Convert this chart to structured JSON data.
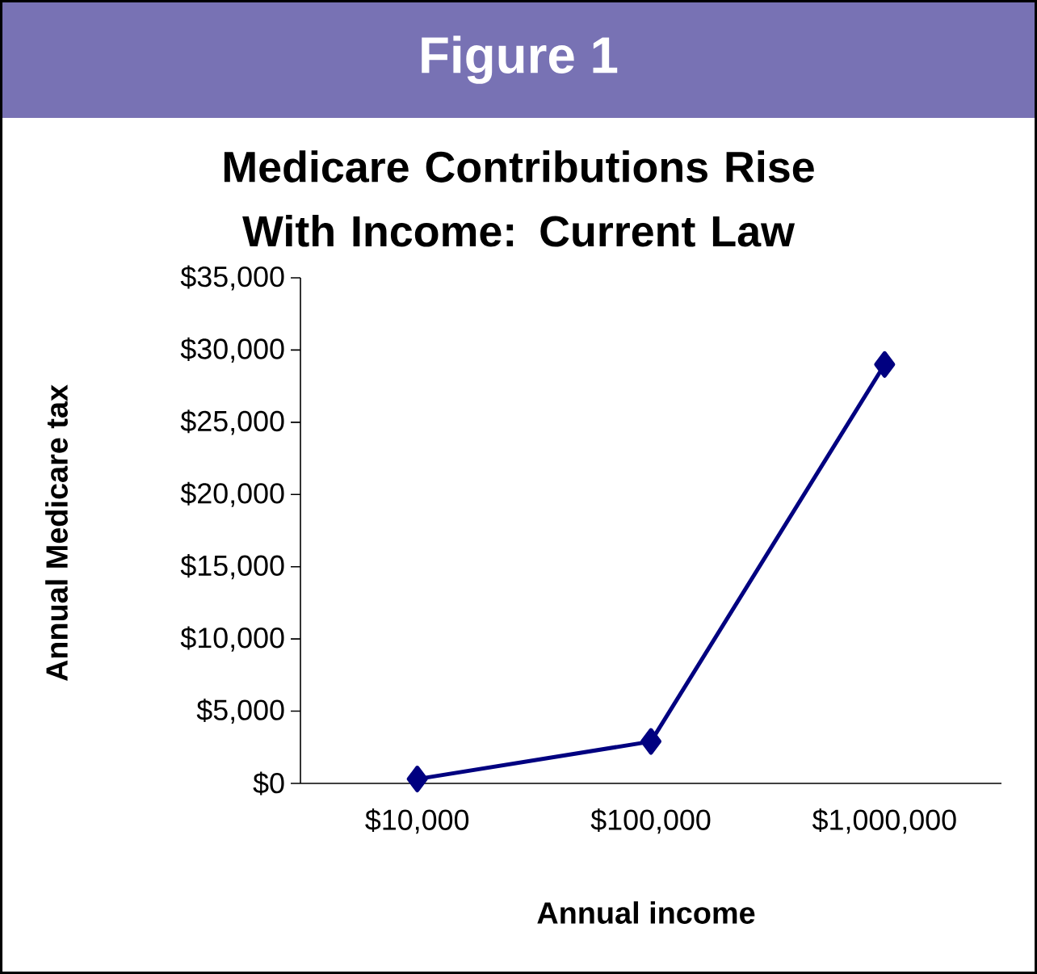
{
  "chart_data": {
    "type": "line",
    "title": "Medicare Contributions Rise With Income: Current Law",
    "annotations": [
      "Figure 1"
    ],
    "xlabel": "Annual income",
    "ylabel": "Annual Medicare tax",
    "categories": [
      "$10,000",
      "$100,000",
      "$1,000,000"
    ],
    "series": [
      {
        "color": "#000080",
        "values": [
          300,
          2900,
          29000
        ]
      }
    ],
    "ylim": [
      0,
      35000
    ],
    "yticks": [
      {
        "value": 0,
        "label": "$0"
      },
      {
        "value": 5000,
        "label": "$5,000"
      },
      {
        "value": 10000,
        "label": "$10,000"
      },
      {
        "value": 15000,
        "label": "$15,000"
      },
      {
        "value": 20000,
        "label": "$20,000"
      },
      {
        "value": 25000,
        "label": "$25,000"
      },
      {
        "value": 30000,
        "label": "$30,000"
      },
      {
        "value": 35000,
        "label": "$35,000"
      }
    ],
    "marker": "diamond",
    "line_style": "solid",
    "grid": false
  }
}
